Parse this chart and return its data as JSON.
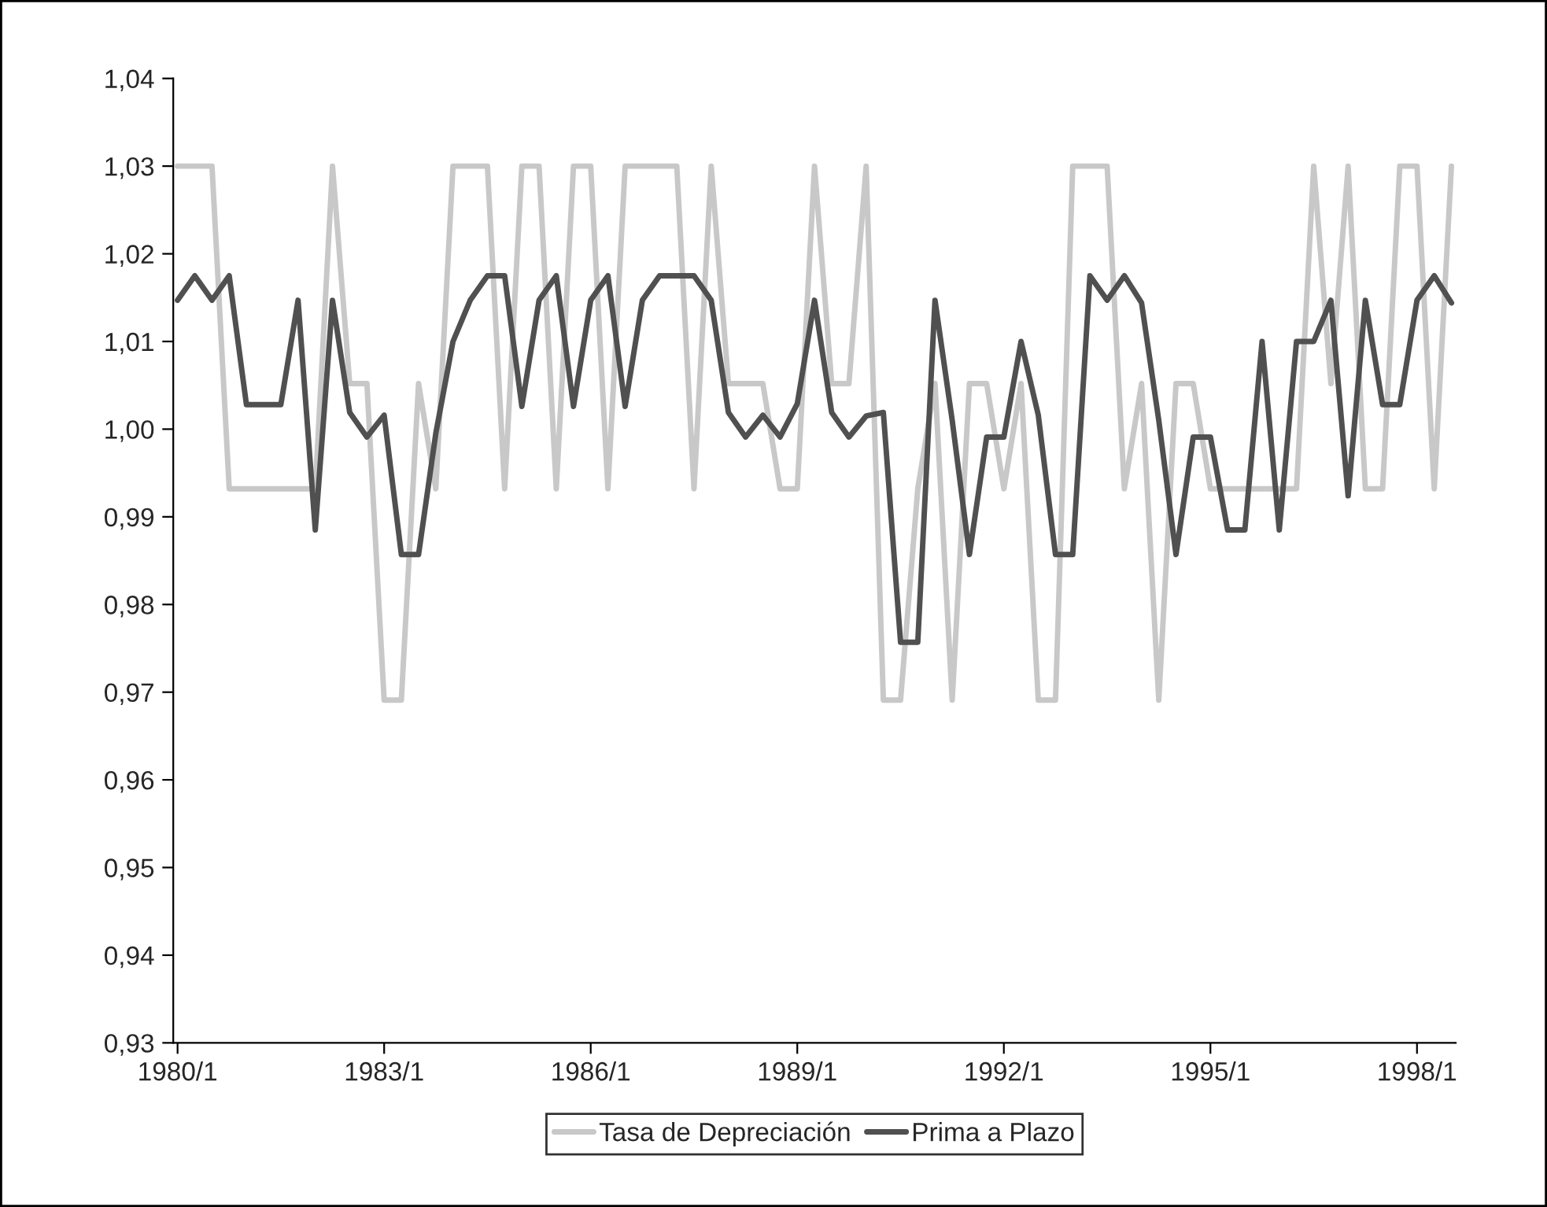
{
  "chart_data": {
    "type": "line",
    "categories": [
      "1980/1",
      null,
      null,
      null,
      null,
      null,
      null,
      null,
      null,
      null,
      null,
      null,
      "1983/1",
      null,
      null,
      null,
      null,
      null,
      null,
      null,
      null,
      null,
      null,
      null,
      "1986/1",
      null,
      null,
      null,
      null,
      null,
      null,
      null,
      null,
      null,
      null,
      null,
      "1989/1",
      null,
      null,
      null,
      null,
      null,
      null,
      null,
      null,
      null,
      null,
      null,
      "1992/1",
      null,
      null,
      null,
      null,
      null,
      null,
      null,
      null,
      null,
      null,
      null,
      "1995/1",
      null,
      null,
      null,
      null,
      null,
      null,
      null,
      null,
      null,
      null,
      null,
      "1998/1",
      null,
      null
    ],
    "series": [
      {
        "name": "Tasa de Depreciación",
        "color": "#c8c8c8",
        "values": [
          1.03,
          1.03,
          1.03,
          0.9932,
          0.9932,
          0.9932,
          0.9932,
          0.9932,
          0.9932,
          1.03,
          1.0052,
          1.0052,
          0.9691,
          0.9691,
          1.0052,
          0.9932,
          1.03,
          1.03,
          1.03,
          0.9932,
          1.03,
          1.03,
          0.9932,
          1.03,
          1.03,
          0.9932,
          1.03,
          1.03,
          1.03,
          1.03,
          0.9932,
          1.03,
          1.0052,
          1.0052,
          1.0052,
          0.9932,
          0.9932,
          1.03,
          1.0052,
          1.0052,
          1.03,
          0.9691,
          0.9691,
          0.9932,
          1.0052,
          0.9691,
          1.0052,
          1.0052,
          0.9932,
          1.0052,
          0.9691,
          0.9691,
          1.03,
          1.03,
          1.03,
          0.9932,
          1.0052,
          0.9691,
          1.0052,
          1.0052,
          0.9932,
          0.9932,
          0.9932,
          0.9932,
          0.9932,
          0.9932,
          1.03,
          1.0052,
          1.03,
          0.9932,
          0.9932,
          1.03,
          1.03,
          0.9932,
          1.03
        ]
      },
      {
        "name": "Prima a Plazo",
        "color": "#505050",
        "values": [
          1.0147,
          1.0175,
          1.0147,
          1.0175,
          1.0028,
          1.0028,
          1.0028,
          1.0147,
          0.9885,
          1.0147,
          1.0019,
          0.9991,
          1.0016,
          0.9857,
          0.9857,
          0.9995,
          1.01,
          1.0147,
          1.0175,
          1.0175,
          1.0026,
          1.0147,
          1.0175,
          1.0026,
          1.0147,
          1.0175,
          1.0026,
          1.0147,
          1.0175,
          1.0175,
          1.0175,
          1.0147,
          1.0019,
          0.9991,
          1.0016,
          0.9991,
          1.0029,
          1.0147,
          1.0019,
          0.9991,
          1.0015,
          1.0019,
          0.9757,
          0.9757,
          1.0147,
          1.001,
          0.9857,
          0.9991,
          0.9991,
          1.01,
          1.0016,
          0.9857,
          0.9857,
          1.0175,
          1.0147,
          1.0175,
          1.0144,
          1.001,
          0.9857,
          0.9991,
          0.9991,
          0.9885,
          0.9885,
          1.01,
          0.9885,
          1.01,
          1.01,
          1.0147,
          0.9924,
          1.0147,
          1.0028,
          1.0028,
          1.0147,
          1.0175,
          1.0144
        ]
      }
    ],
    "ylim": [
      0.93,
      1.04
    ],
    "yticks": [
      {
        "value": 0.93,
        "label": "0,93"
      },
      {
        "value": 0.94,
        "label": "0,94"
      },
      {
        "value": 0.95,
        "label": "0,95"
      },
      {
        "value": 0.96,
        "label": "0,96"
      },
      {
        "value": 0.97,
        "label": "0,97"
      },
      {
        "value": 0.98,
        "label": "0,98"
      },
      {
        "value": 0.99,
        "label": "0,99"
      },
      {
        "value": 1.0,
        "label": "1,00"
      },
      {
        "value": 1.01,
        "label": "1,01"
      },
      {
        "value": 1.02,
        "label": "1,02"
      },
      {
        "value": 1.03,
        "label": "1,03"
      },
      {
        "value": 1.04,
        "label": "1,04"
      }
    ],
    "grid": false,
    "legend": "bottom",
    "marker": "none",
    "line_style": "solid"
  }
}
